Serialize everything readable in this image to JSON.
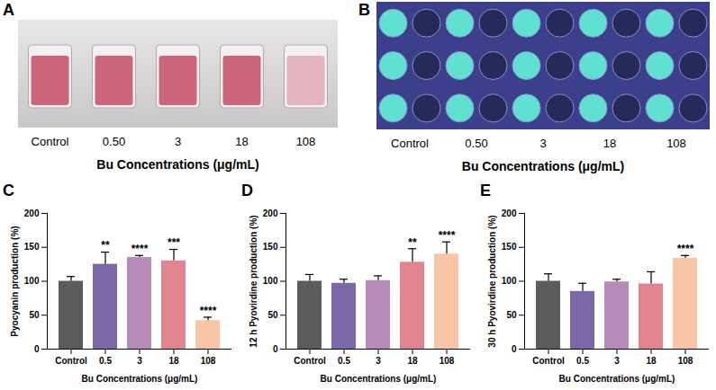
{
  "photos": [
    {
      "panel_label": "A",
      "categories": [
        "Control",
        "0.50",
        "3",
        "18",
        "108"
      ],
      "x_label": "Bu Concentrations (μg/mL)"
    },
    {
      "panel_label": "B",
      "categories": [
        "Control",
        "0.50",
        "3",
        "18",
        "108"
      ],
      "x_label": "Bu Concentrations (μg/mL)"
    }
  ],
  "chart_data": [
    {
      "type": "bar",
      "panel_label": "C",
      "y_label": "Pyocyanin production (%)",
      "x_label": "Bu Concentrations (μg/mL)",
      "categories": [
        "Control",
        "0.5",
        "3",
        "18",
        "108"
      ],
      "values": [
        100,
        125,
        135,
        130,
        42
      ],
      "errors": [
        7,
        18,
        3,
        17,
        5
      ],
      "significance": [
        null,
        "**",
        "****",
        "***",
        "****"
      ],
      "colors": [
        "#5b5b5b",
        "#7a68a8",
        "#b88ab8",
        "#e0848f",
        "#f8c6a6"
      ],
      "ylim": [
        0,
        200
      ],
      "yticks": [
        0,
        50,
        100,
        150,
        200
      ]
    },
    {
      "type": "bar",
      "panel_label": "D",
      "y_label": "12 h Pyovirdine production (%)",
      "x_label": "Bu Concentrations (μg/mL)",
      "categories": [
        "Control",
        "0.5",
        "3",
        "18",
        "108"
      ],
      "values": [
        100,
        97,
        101,
        128,
        140
      ],
      "errors": [
        10,
        6,
        7,
        20,
        18
      ],
      "significance": [
        null,
        null,
        null,
        "**",
        "****"
      ],
      "colors": [
        "#5b5b5b",
        "#7a68a8",
        "#b88ab8",
        "#e0848f",
        "#f8c6a6"
      ],
      "ylim": [
        0,
        200
      ],
      "yticks": [
        0,
        50,
        100,
        150,
        200
      ]
    },
    {
      "type": "bar",
      "panel_label": "E",
      "y_label": "30 h Pyovirdine production (%)",
      "x_label": "Bu Concentrations (μg/mL)",
      "categories": [
        "Control",
        "0.5",
        "3",
        "18",
        "108"
      ],
      "values": [
        100,
        85,
        99,
        96,
        134
      ],
      "errors": [
        11,
        12,
        4,
        18,
        4
      ],
      "significance": [
        null,
        null,
        null,
        null,
        "****"
      ],
      "colors": [
        "#5b5b5b",
        "#7a68a8",
        "#b88ab8",
        "#e0848f",
        "#f8c6a6"
      ],
      "ylim": [
        0,
        200
      ],
      "yticks": [
        0,
        50,
        100,
        150,
        200
      ]
    }
  ]
}
